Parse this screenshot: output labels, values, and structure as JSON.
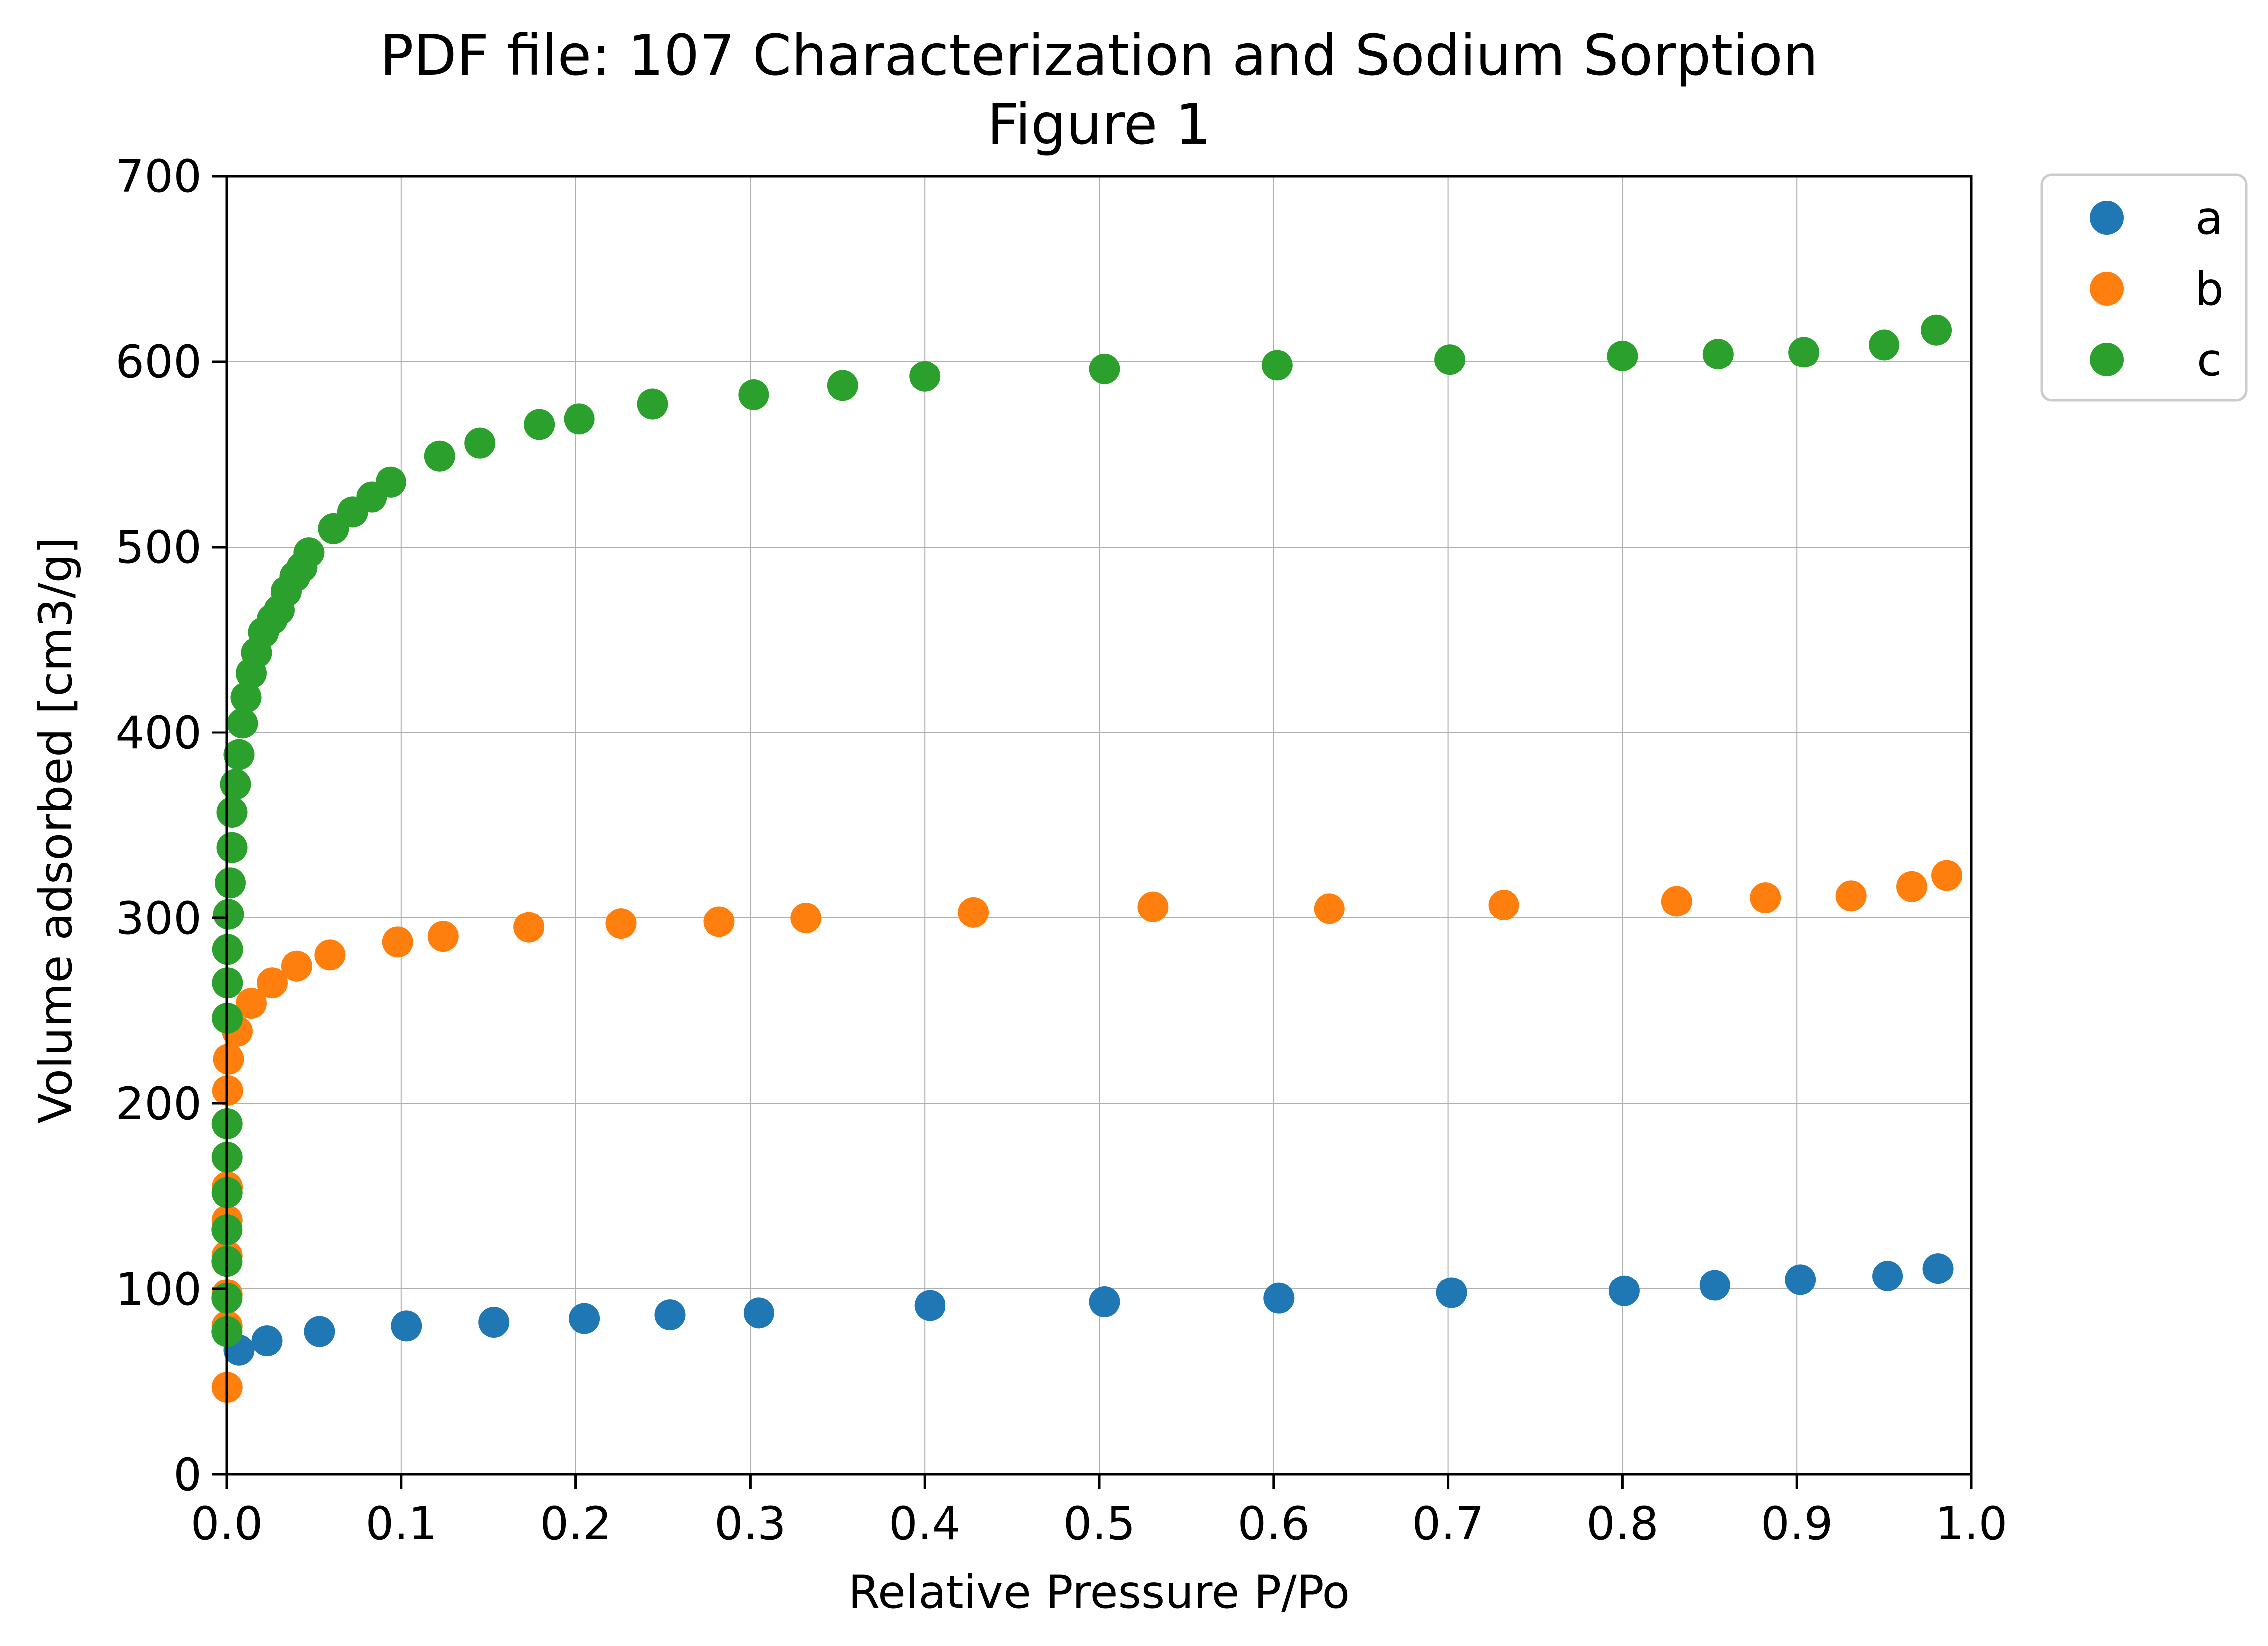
{
  "chart_data": {
    "type": "scatter",
    "title": "PDF file: 107 Characterization and Sodium Sorption",
    "subtitle": "Figure 1",
    "xlabel": "Relative Pressure P/Po",
    "ylabel": "Volume adsorbed [cm3/g]",
    "xlim": [
      0,
      1
    ],
    "ylim": [
      0,
      700
    ],
    "xticks": [
      "0.0",
      "0.1",
      "0.2",
      "0.3",
      "0.4",
      "0.5",
      "0.6",
      "0.7",
      "0.8",
      "0.9",
      "1.0"
    ],
    "xtick_values": [
      0,
      0.1,
      0.2,
      0.3,
      0.4,
      0.5,
      0.6,
      0.7,
      0.8,
      0.9,
      1.0
    ],
    "yticks": [
      "0",
      "100",
      "200",
      "300",
      "400",
      "500",
      "600",
      "700"
    ],
    "ytick_values": [
      0,
      100,
      200,
      300,
      400,
      500,
      600,
      700
    ],
    "grid": true,
    "legend_position": "outside-top-right",
    "series": [
      {
        "name": "a",
        "color": "#1f77b4",
        "points": [
          [
            0.007,
            67
          ],
          [
            0.023,
            72
          ],
          [
            0.053,
            77
          ],
          [
            0.103,
            80
          ],
          [
            0.153,
            82
          ],
          [
            0.205,
            84
          ],
          [
            0.254,
            86
          ],
          [
            0.305,
            87
          ],
          [
            0.403,
            91
          ],
          [
            0.503,
            93
          ],
          [
            0.603,
            95
          ],
          [
            0.702,
            98
          ],
          [
            0.801,
            99
          ],
          [
            0.853,
            102
          ],
          [
            0.902,
            105
          ],
          [
            0.952,
            107
          ],
          [
            0.981,
            111
          ]
        ]
      },
      {
        "name": "b",
        "color": "#ff7f0e",
        "points": [
          [
            0.0002,
            47
          ],
          [
            0.0002,
            80
          ],
          [
            0.0002,
            97
          ],
          [
            0.0002,
            118
          ],
          [
            0.0002,
            137
          ],
          [
            0.0003,
            155
          ],
          [
            0.0005,
            207
          ],
          [
            0.001,
            224
          ],
          [
            0.006,
            239
          ],
          [
            0.014,
            254
          ],
          [
            0.026,
            265
          ],
          [
            0.04,
            274
          ],
          [
            0.059,
            280
          ],
          [
            0.098,
            287
          ],
          [
            0.124,
            290
          ],
          [
            0.173,
            295
          ],
          [
            0.226,
            297
          ],
          [
            0.282,
            298
          ],
          [
            0.332,
            300
          ],
          [
            0.428,
            303
          ],
          [
            0.531,
            306
          ],
          [
            0.632,
            305
          ],
          [
            0.732,
            307
          ],
          [
            0.831,
            309
          ],
          [
            0.882,
            311
          ],
          [
            0.931,
            312
          ],
          [
            0.966,
            317
          ],
          [
            0.986,
            323
          ]
        ]
      },
      {
        "name": "c",
        "color": "#2ca02c",
        "points": [
          [
            0.0001,
            77
          ],
          [
            0.0001,
            95
          ],
          [
            0.0001,
            115
          ],
          [
            0.0001,
            132
          ],
          [
            0.0002,
            152
          ],
          [
            0.0002,
            171
          ],
          [
            0.0002,
            189
          ],
          [
            0.0003,
            246
          ],
          [
            0.0004,
            265
          ],
          [
            0.0005,
            283
          ],
          [
            0.001,
            302
          ],
          [
            0.002,
            319
          ],
          [
            0.003,
            338
          ],
          [
            0.003,
            357
          ],
          [
            0.005,
            372
          ],
          [
            0.007,
            388
          ],
          [
            0.009,
            405
          ],
          [
            0.011,
            419
          ],
          [
            0.014,
            432
          ],
          [
            0.017,
            443
          ],
          [
            0.021,
            454
          ],
          [
            0.026,
            461
          ],
          [
            0.03,
            466
          ],
          [
            0.034,
            476
          ],
          [
            0.039,
            484
          ],
          [
            0.043,
            489
          ],
          [
            0.047,
            497
          ],
          [
            0.061,
            510
          ],
          [
            0.072,
            519
          ],
          [
            0.083,
            527
          ],
          [
            0.094,
            535
          ],
          [
            0.122,
            549
          ],
          [
            0.145,
            556
          ],
          [
            0.179,
            566
          ],
          [
            0.202,
            569
          ],
          [
            0.244,
            577
          ],
          [
            0.302,
            582
          ],
          [
            0.353,
            587
          ],
          [
            0.4,
            592
          ],
          [
            0.503,
            596
          ],
          [
            0.602,
            598
          ],
          [
            0.701,
            601
          ],
          [
            0.8,
            603
          ],
          [
            0.855,
            604
          ],
          [
            0.904,
            605
          ],
          [
            0.95,
            609
          ],
          [
            0.98,
            617
          ]
        ]
      }
    ]
  }
}
